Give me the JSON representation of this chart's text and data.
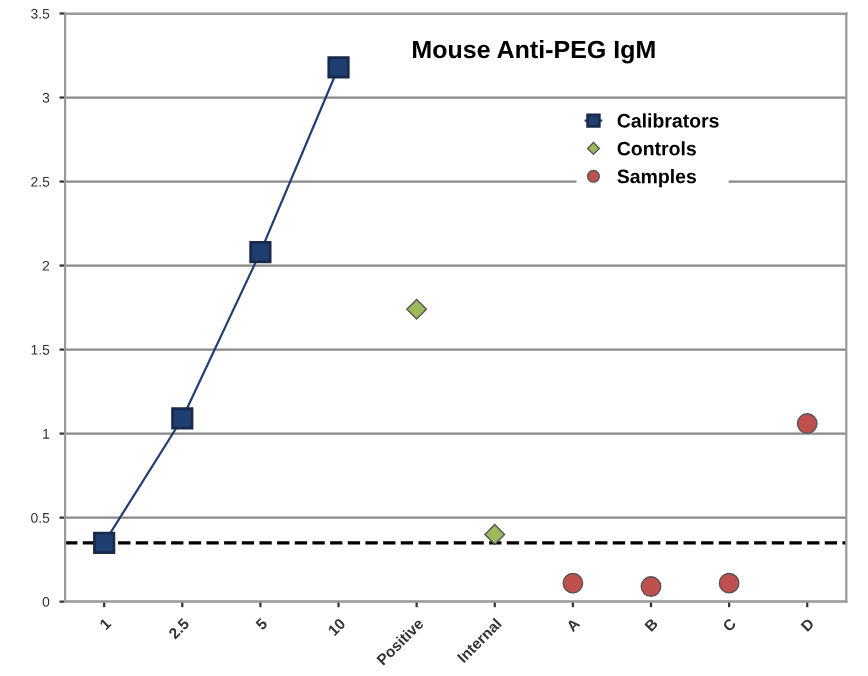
{
  "chart_data": {
    "type": "scatter",
    "title": "Mouse Anti-PEG IgM",
    "categories": [
      "1",
      "2.5",
      "5",
      "10",
      "Positive",
      "Internal",
      "A",
      "B",
      "C",
      "D"
    ],
    "series": [
      {
        "name": "Calibrators",
        "type": "line",
        "marker": "square",
        "color": "#1f3f73",
        "values": [
          0.35,
          1.09,
          2.08,
          3.18,
          null,
          null,
          null,
          null,
          null,
          null
        ]
      },
      {
        "name": "Controls",
        "marker": "diamond",
        "color": "#9cba5a",
        "values": [
          null,
          null,
          null,
          null,
          1.74,
          0.4,
          null,
          null,
          null,
          null
        ]
      },
      {
        "name": "Samples",
        "marker": "circle",
        "color": "#c0504d",
        "values": [
          null,
          null,
          null,
          null,
          null,
          null,
          0.11,
          0.09,
          0.11,
          1.06
        ]
      }
    ],
    "ylim": [
      0,
      3.5
    ],
    "yticks": [
      0,
      0.5,
      1,
      1.5,
      2,
      2.5,
      3,
      3.5
    ],
    "ref_lines": [
      {
        "axis": "y",
        "value": 0.35,
        "color": "#000000",
        "line_style": "dashed"
      }
    ],
    "grid": "y",
    "legend": "top right"
  }
}
